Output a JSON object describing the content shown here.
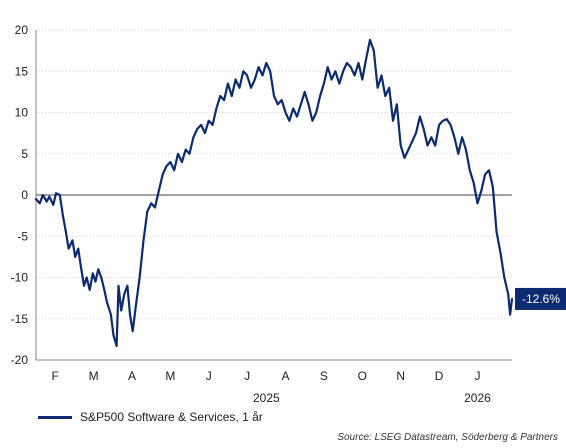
{
  "colors": {
    "line": "#0b2a6f",
    "grid": "#c8c8c8",
    "zero": "#444444",
    "tag_bg": "#0b2a6f",
    "tag_text": "#ffffff"
  },
  "legend": {
    "label": "S&P500 Software & Services, 1 år"
  },
  "source": "Source: LSEG Datastream, Söderberg & Partners",
  "end_tag": "-12.6%",
  "chart_data": {
    "type": "line",
    "title": "",
    "xlabel": "",
    "ylabel": "",
    "ylim": [
      -20,
      20
    ],
    "y_ticks": [
      20,
      15,
      10,
      5,
      0,
      -5,
      -10,
      -15,
      -20
    ],
    "x_ticks": [
      "F",
      "M",
      "A",
      "M",
      "J",
      "J",
      "A",
      "S",
      "O",
      "N",
      "D",
      "J"
    ],
    "year_labels": [
      "2025",
      "2026"
    ],
    "grid": "horizontal",
    "legend_position": "bottom-left",
    "x_range": [
      0,
      12.4
    ],
    "series": [
      {
        "name": "S&P500 Software & Services, 1 år",
        "x": [
          0.0,
          0.1,
          0.18,
          0.28,
          0.35,
          0.45,
          0.52,
          0.62,
          0.7,
          0.78,
          0.85,
          0.95,
          1.02,
          1.1,
          1.18,
          1.25,
          1.32,
          1.4,
          1.48,
          1.55,
          1.62,
          1.7,
          1.78,
          1.85,
          1.95,
          2.02,
          2.1,
          2.15,
          2.22,
          2.3,
          2.38,
          2.45,
          2.52,
          2.6,
          2.7,
          2.8,
          2.9,
          3.0,
          3.1,
          3.2,
          3.3,
          3.4,
          3.5,
          3.6,
          3.7,
          3.8,
          3.9,
          4.0,
          4.1,
          4.2,
          4.3,
          4.4,
          4.5,
          4.6,
          4.7,
          4.8,
          4.9,
          5.0,
          5.1,
          5.2,
          5.3,
          5.4,
          5.5,
          5.6,
          5.7,
          5.8,
          5.9,
          6.0,
          6.1,
          6.2,
          6.3,
          6.4,
          6.5,
          6.6,
          6.7,
          6.8,
          6.9,
          7.0,
          7.1,
          7.2,
          7.3,
          7.4,
          7.5,
          7.6,
          7.7,
          7.8,
          7.9,
          8.0,
          8.1,
          8.2,
          8.3,
          8.4,
          8.5,
          8.6,
          8.7,
          8.8,
          8.9,
          9.0,
          9.1,
          9.2,
          9.3,
          9.4,
          9.5,
          9.6,
          9.7,
          9.8,
          9.9,
          10.0,
          10.1,
          10.2,
          10.3,
          10.4,
          10.5,
          10.6,
          10.7,
          10.8,
          10.9,
          11.0,
          11.1,
          11.2,
          11.3,
          11.4,
          11.5,
          11.6,
          11.7,
          11.8,
          11.9,
          12.0,
          12.1,
          12.2,
          12.3,
          12.35,
          12.4
        ],
        "values": [
          -0.5,
          -1.0,
          0.0,
          -0.8,
          -0.2,
          -1.2,
          0.2,
          0.0,
          -2.5,
          -4.5,
          -6.5,
          -5.5,
          -7.5,
          -6.5,
          -9.0,
          -11.0,
          -10.0,
          -11.5,
          -9.5,
          -10.5,
          -9.0,
          -10.0,
          -11.5,
          -13.0,
          -14.5,
          -17.0,
          -18.3,
          -11.0,
          -14.0,
          -12.0,
          -11.0,
          -14.5,
          -16.5,
          -13.5,
          -10.0,
          -5.5,
          -2.0,
          -1.0,
          -1.5,
          0.5,
          2.5,
          3.5,
          4.0,
          3.0,
          5.0,
          4.0,
          5.5,
          5.0,
          7.0,
          8.0,
          8.5,
          7.5,
          9.0,
          8.5,
          10.5,
          12.0,
          11.5,
          13.5,
          12.0,
          14.0,
          13.0,
          15.0,
          14.5,
          13.0,
          14.0,
          15.5,
          14.5,
          16.0,
          15.0,
          12.0,
          11.0,
          11.5,
          10.0,
          9.0,
          10.5,
          9.5,
          11.0,
          12.5,
          11.0,
          9.0,
          10.0,
          12.0,
          13.5,
          15.5,
          14.0,
          15.0,
          13.5,
          15.0,
          16.0,
          15.5,
          14.5,
          16.0,
          14.0,
          16.5,
          18.8,
          17.5,
          13.0,
          14.5,
          12.0,
          13.0,
          9.0,
          11.0,
          6.0,
          4.5,
          5.5,
          6.5,
          7.5,
          9.5,
          8.0,
          6.0,
          7.0,
          6.0,
          8.5,
          9.0,
          9.2,
          8.5,
          7.0,
          5.0,
          7.0,
          5.5,
          3.0,
          1.5,
          -1.0,
          0.5,
          2.5,
          3.0,
          1.0,
          -4.5,
          -7.0,
          -10.0,
          -12.0,
          -14.5,
          -12.6
        ]
      }
    ]
  }
}
